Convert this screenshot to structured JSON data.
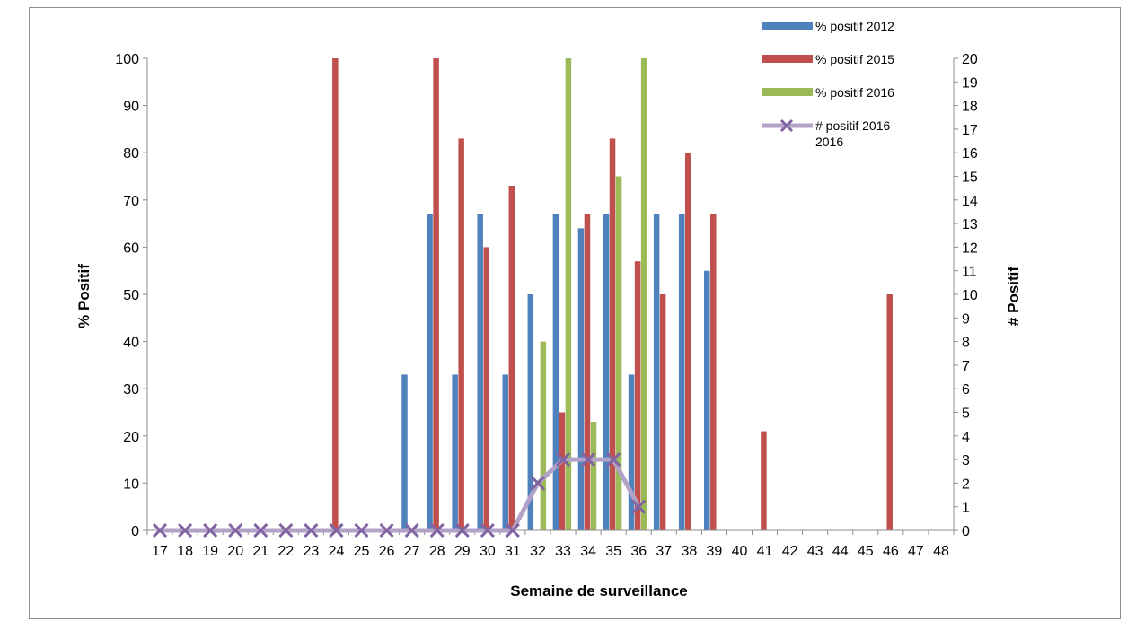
{
  "chart_data": {
    "type": "bar",
    "xlabel": "Semaine de surveillance",
    "ylabel": "% Positif",
    "y2label": "# Positif",
    "ylim": [
      0,
      100
    ],
    "y2lim": [
      0,
      20
    ],
    "yticks": [
      "0",
      "10",
      "20",
      "30",
      "40",
      "50",
      "60",
      "70",
      "80",
      "90",
      "100"
    ],
    "y2ticks": [
      "0",
      "1",
      "2",
      "3",
      "4",
      "5",
      "6",
      "7",
      "8",
      "9",
      "10",
      "11",
      "12",
      "13",
      "14",
      "15",
      "16",
      "17",
      "18",
      "19",
      "20"
    ],
    "categories": [
      "17",
      "18",
      "19",
      "20",
      "21",
      "22",
      "23",
      "24",
      "25",
      "26",
      "27",
      "28",
      "29",
      "30",
      "31",
      "32",
      "33",
      "34",
      "35",
      "36",
      "37",
      "38",
      "39",
      "40",
      "41",
      "42",
      "43",
      "44",
      "45",
      "46",
      "47",
      "48"
    ],
    "series": [
      {
        "name": "% positif 2012",
        "type": "bar",
        "axis": "left",
        "color": "#4f81bd",
        "values": [
          0,
          0,
          0,
          0,
          0,
          0,
          0,
          0,
          0,
          0,
          33,
          67,
          33,
          67,
          33,
          50,
          67,
          64,
          67,
          33,
          67,
          67,
          55,
          0,
          0,
          0,
          0,
          0,
          0,
          0,
          0,
          0
        ]
      },
      {
        "name": "% positif 2015",
        "type": "bar",
        "axis": "left",
        "color": "#c0504d",
        "values": [
          0,
          0,
          0,
          0,
          0,
          0,
          0,
          100,
          0,
          0,
          0,
          100,
          83,
          60,
          73,
          0,
          25,
          67,
          83,
          57,
          50,
          80,
          67,
          0,
          21,
          0,
          0,
          0,
          0,
          50,
          0,
          0
        ]
      },
      {
        "name": "% positif 2016",
        "type": "bar",
        "axis": "left",
        "color": "#9bbb59",
        "values": [
          0,
          0,
          0,
          0,
          0,
          0,
          0,
          0,
          0,
          0,
          0,
          0,
          0,
          0,
          0,
          40,
          100,
          23,
          75,
          100,
          0,
          0,
          0,
          0,
          0,
          0,
          0,
          0,
          0,
          0,
          0,
          0
        ]
      },
      {
        "name": "# positif  2016\n2016",
        "type": "line",
        "axis": "right",
        "color": "#8064a2",
        "values": [
          0,
          0,
          0,
          0,
          0,
          0,
          0,
          0,
          0,
          0,
          0,
          0,
          0,
          0,
          0,
          2,
          3,
          3,
          3,
          1,
          null,
          null,
          null,
          null,
          null,
          null,
          null,
          null,
          null,
          null,
          null,
          null
        ]
      }
    ],
    "legend_position": "top-right",
    "grid": false
  }
}
